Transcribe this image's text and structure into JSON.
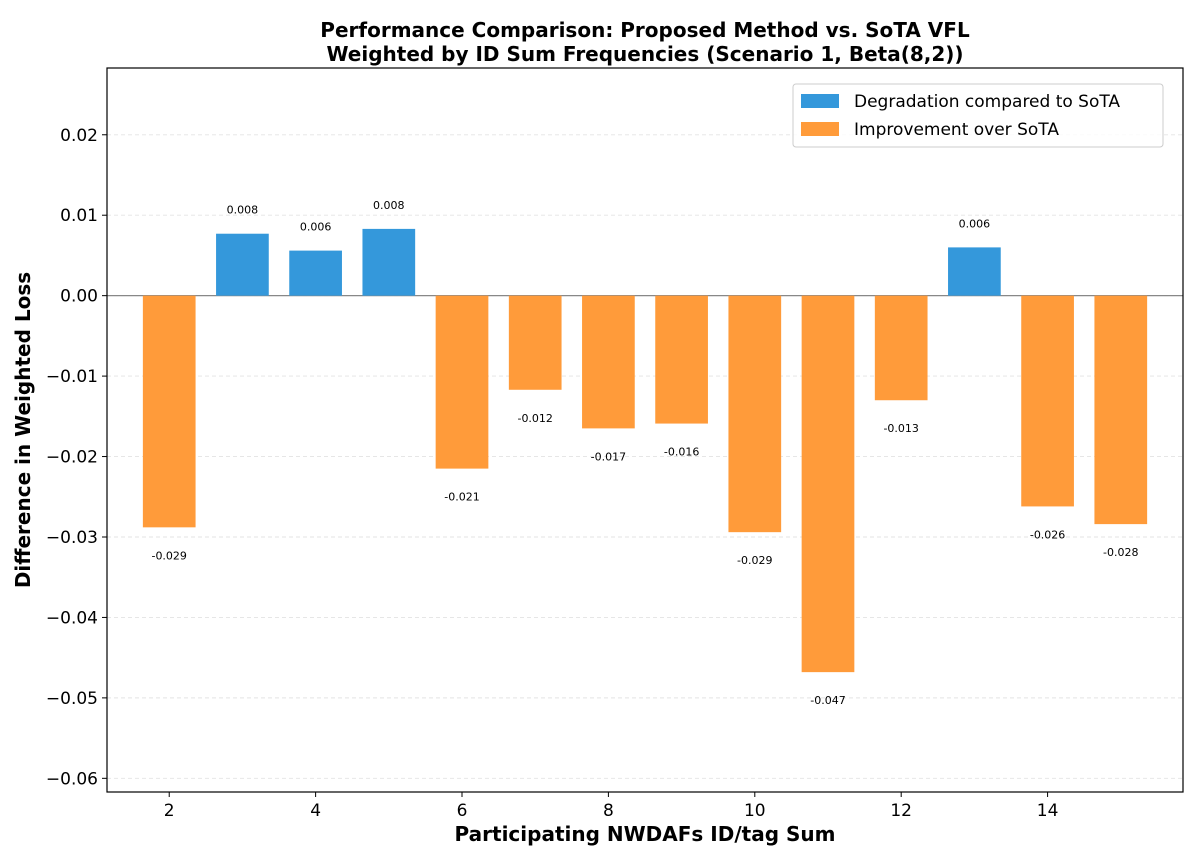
{
  "chart_data": {
    "type": "bar",
    "title": "Performance Comparison: Proposed Method vs. SoTA VFL",
    "subtitle": "Weighted by ID Sum Frequencies (Scenario 1, Beta(8,2))",
    "xlabel": "Participating NWDAFs ID/tag Sum",
    "ylabel": "Difference in Weighted Loss",
    "x": [
      2,
      3,
      4,
      5,
      6,
      7,
      8,
      9,
      10,
      11,
      12,
      13,
      14,
      15
    ],
    "values": [
      -0.0288,
      0.0077,
      0.0056,
      0.0083,
      -0.0215,
      -0.0117,
      -0.0165,
      -0.0159,
      -0.0294,
      -0.0468,
      -0.013,
      0.006,
      -0.0262,
      -0.0284
    ],
    "data_labels": [
      "-0.029",
      "0.008",
      "0.006",
      "0.008",
      "-0.021",
      "-0.012",
      "-0.017",
      "-0.016",
      "-0.029",
      "-0.047",
      "-0.013",
      "0.006",
      "-0.026",
      "-0.028"
    ],
    "xticks": [
      2,
      4,
      6,
      8,
      10,
      12,
      14
    ],
    "xtick_labels": [
      "2",
      "4",
      "6",
      "8",
      "10",
      "12",
      "14"
    ],
    "yticks": [
      0.02,
      0.01,
      0.0,
      -0.01,
      -0.02,
      -0.03,
      -0.04,
      -0.05,
      -0.06
    ],
    "ytick_labels": [
      "0.02",
      "0.01",
      "0.00",
      "−0.01",
      "−0.02",
      "−0.03",
      "−0.04",
      "−0.05",
      "−0.06"
    ],
    "xlim": [
      1.15,
      15.85
    ],
    "ylim": [
      -0.0617,
      0.0283
    ],
    "grid": "horizontal dashed",
    "legend_position": "upper right",
    "legend": [
      {
        "label": "Degradation compared to SoTA",
        "color": "#3498db"
      },
      {
        "label": "Improvement over SoTA",
        "color": "#ff9b3a"
      }
    ],
    "colors": {
      "positive": "#3498db",
      "negative": "#ff9b3a"
    }
  }
}
